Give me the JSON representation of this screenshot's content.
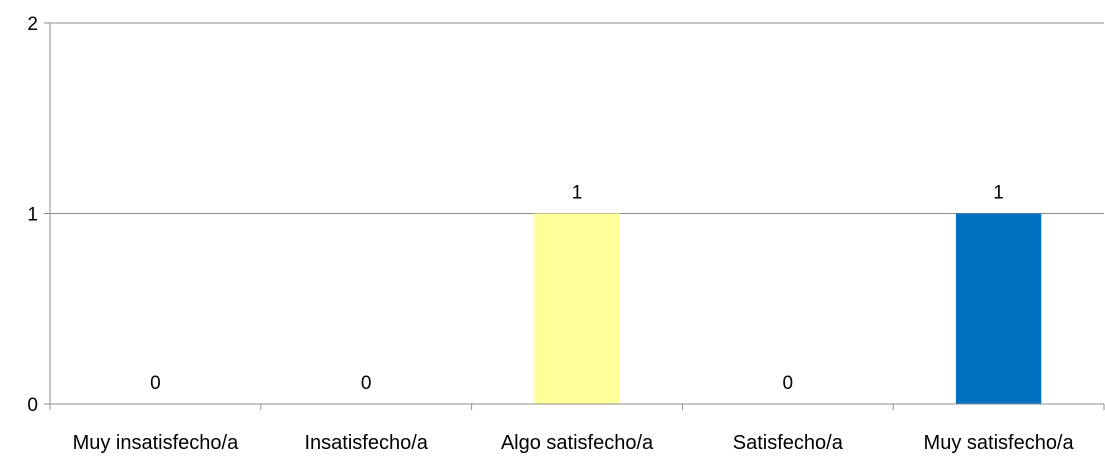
{
  "chart_data": {
    "type": "bar",
    "categories": [
      "Muy insatisfecho/a",
      "Insatisfecho/a",
      "Algo satisfecho/a",
      "Satisfecho/a",
      "Muy satisfecho/a"
    ],
    "values": [
      0,
      0,
      1,
      0,
      1
    ],
    "data_labels": [
      "0",
      "0",
      "1",
      "0",
      "1"
    ],
    "bar_colors": [
      "#FFFF99",
      "#FFFF99",
      "#FFFF99",
      "#FFFF99",
      "#0070C0"
    ],
    "y_ticks": [
      0,
      1,
      2
    ],
    "y_tick_labels": [
      "0",
      "1",
      "2"
    ],
    "ylim": [
      0,
      2
    ],
    "grid": true,
    "legend": "none",
    "title": "",
    "xlabel": "",
    "ylabel": ""
  }
}
